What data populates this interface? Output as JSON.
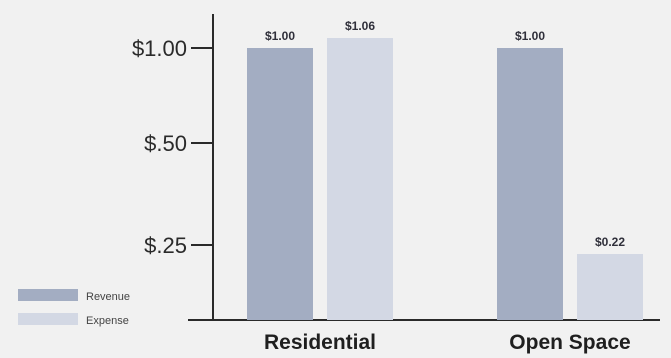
{
  "chart_data": {
    "type": "bar",
    "categories": [
      "Residential",
      "Open Space"
    ],
    "series": [
      {
        "name": "Revenue",
        "values": [
          1.0,
          1.0
        ],
        "color": "#a3adc2"
      },
      {
        "name": "Expense",
        "values": [
          1.06,
          0.22
        ],
        "color": "#d3d8e4"
      }
    ],
    "data_labels": [
      [
        "$1.00",
        "$1.00"
      ],
      [
        "$1.06",
        "$0.22"
      ]
    ],
    "y_ticks": [
      {
        "value": 1.0,
        "label": "$1.00"
      },
      {
        "value": 0.5,
        "label": "$.50"
      },
      {
        "value": 0.25,
        "label": "$.25"
      }
    ],
    "y_axis_note": "non-linear scale (tick spacing not proportional to value)",
    "legend_position": "bottom-left",
    "grid": false,
    "title": "",
    "xlabel": "",
    "ylabel": "",
    "colors": {
      "background": "#f1f1f1",
      "axis": "#2a2a2a"
    }
  }
}
